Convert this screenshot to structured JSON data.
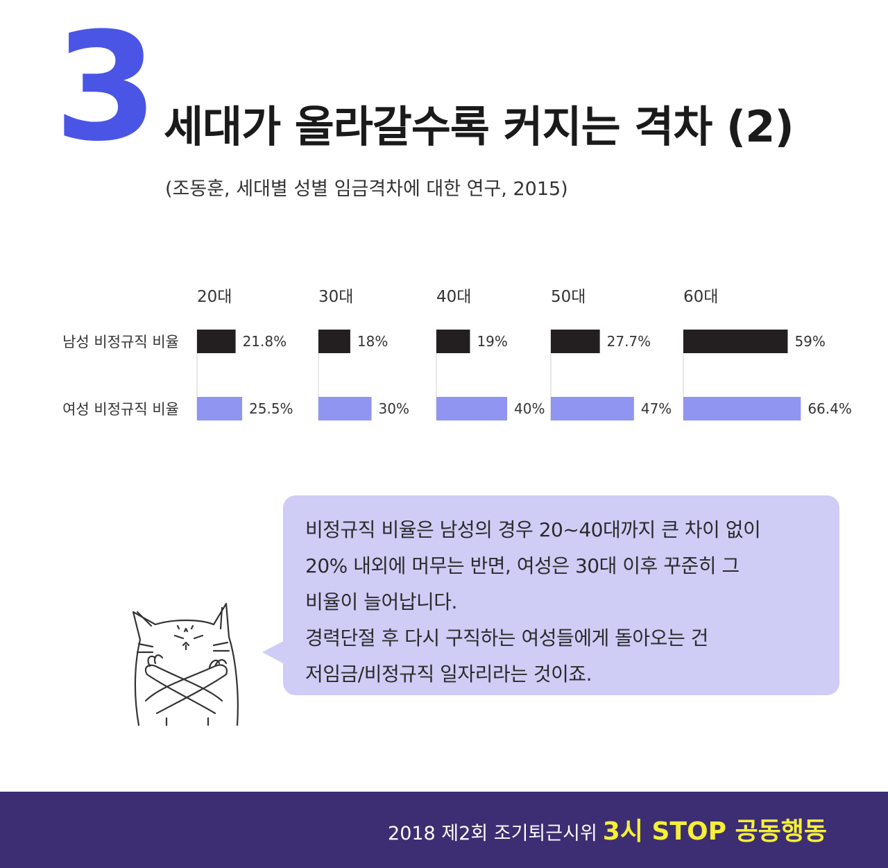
{
  "header": {
    "number": "3",
    "title": "세대가 올라갈수록 커지는 격차 (2)",
    "subtitle": "(조동훈, 세대별 성별 임금격차에 대한 연구, 2015)"
  },
  "chart_data": {
    "type": "bar",
    "orientation": "horizontal",
    "categories": [
      "20대",
      "30대",
      "40대",
      "50대",
      "60대"
    ],
    "series": [
      {
        "name": "남성 비정규직 비율",
        "values": [
          21.8,
          18,
          19,
          27.7,
          59
        ],
        "labels": [
          "21.8%",
          "18%",
          "19%",
          "27.7%",
          "59%"
        ],
        "color": "#231f20"
      },
      {
        "name": "여성 비정규직 비율",
        "values": [
          25.5,
          30,
          40,
          47,
          66.4
        ],
        "labels": [
          "25.5%",
          "30%",
          "40%",
          "47%",
          "66.4%"
        ],
        "color": "#9095f2"
      }
    ],
    "unit": "%",
    "title": "",
    "xlabel": "",
    "ylabel": "",
    "legend": "left"
  },
  "bubble": {
    "lines": [
      "비정규직 비율은 남성의 경우 20~40대까지 큰 차이 없이",
      "20% 내외에 머무는 반면, 여성은 30대 이후 꾸준히 그",
      "비율이 늘어납니다.",
      "경력단절 후 다시 구직하는 여성들에게 돌아오는 건",
      "저임금/비정규직 일자리라는 것이죠."
    ],
    "color": "#cfcdf6"
  },
  "footer": {
    "text": "2018 제2회 조기퇴근시위",
    "highlight": "3시 STOP 공동행동",
    "background": "#3d2e73",
    "highlight_color": "#f5f035"
  }
}
